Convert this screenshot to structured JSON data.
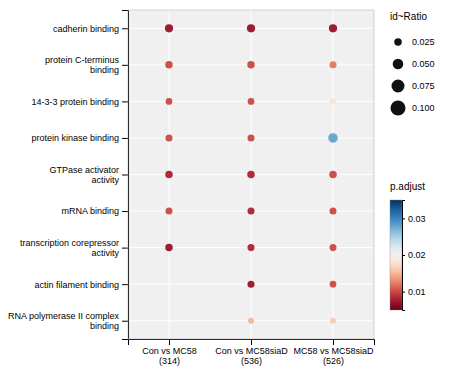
{
  "chart_data": {
    "type": "dot",
    "categories": [
      "cadherin binding",
      "protein C-terminus\nbinding",
      "14-3-3 protein binding",
      "protein kinase binding",
      "GTPase activator\nactivity",
      "mRNA binding",
      "transcription corepressor\nactivity",
      "actin filament binding",
      "RNA polymerase II complex\nbinding"
    ],
    "groups": [
      "Con vs MC58\n(314)",
      "Con vs MC58siaD\n(536)",
      "MC58 vs MC58siaD\n(526)"
    ],
    "points": [
      {
        "cat": 0,
        "grp": 0,
        "size": 0.03,
        "p": 0.007
      },
      {
        "cat": 0,
        "grp": 1,
        "size": 0.03,
        "p": 0.007
      },
      {
        "cat": 0,
        "grp": 2,
        "size": 0.03,
        "p": 0.007
      },
      {
        "cat": 1,
        "grp": 0,
        "size": 0.025,
        "p": 0.01
      },
      {
        "cat": 1,
        "grp": 1,
        "size": 0.025,
        "p": 0.01
      },
      {
        "cat": 1,
        "grp": 2,
        "size": 0.022,
        "p": 0.012
      },
      {
        "cat": 2,
        "grp": 0,
        "size": 0.02,
        "p": 0.01
      },
      {
        "cat": 2,
        "grp": 1,
        "size": 0.02,
        "p": 0.01
      },
      {
        "cat": 2,
        "grp": 2,
        "size": 0.018,
        "p": 0.018
      },
      {
        "cat": 3,
        "grp": 0,
        "size": 0.022,
        "p": 0.01
      },
      {
        "cat": 3,
        "grp": 1,
        "size": 0.022,
        "p": 0.01
      },
      {
        "cat": 3,
        "grp": 2,
        "size": 0.04,
        "p": 0.028
      },
      {
        "cat": 4,
        "grp": 0,
        "size": 0.025,
        "p": 0.008
      },
      {
        "cat": 4,
        "grp": 1,
        "size": 0.025,
        "p": 0.008
      },
      {
        "cat": 4,
        "grp": 2,
        "size": 0.025,
        "p": 0.01
      },
      {
        "cat": 5,
        "grp": 0,
        "size": 0.022,
        "p": 0.01
      },
      {
        "cat": 5,
        "grp": 1,
        "size": 0.022,
        "p": 0.008
      },
      {
        "cat": 5,
        "grp": 2,
        "size": 0.022,
        "p": 0.01
      },
      {
        "cat": 6,
        "grp": 0,
        "size": 0.025,
        "p": 0.007
      },
      {
        "cat": 6,
        "grp": 1,
        "size": 0.022,
        "p": 0.008
      },
      {
        "cat": 6,
        "grp": 2,
        "size": 0.022,
        "p": 0.01
      },
      {
        "cat": 7,
        "grp": 1,
        "size": 0.022,
        "p": 0.007
      },
      {
        "cat": 7,
        "grp": 2,
        "size": 0.02,
        "p": 0.01
      },
      {
        "cat": 8,
        "grp": 1,
        "size": 0.016,
        "p": 0.015
      },
      {
        "cat": 8,
        "grp": 2,
        "size": 0.016,
        "p": 0.016
      }
    ],
    "grid": true,
    "size_legend": {
      "title": "id~Ratio",
      "values": [
        0.025,
        0.05,
        0.075,
        0.1
      ],
      "labels": [
        "0.025",
        "0.050",
        "0.075",
        "0.100"
      ]
    },
    "color_bar": {
      "title": "p.adjust",
      "range": [
        0.005,
        0.035
      ],
      "ticks": [
        0.01,
        0.02,
        0.03
      ]
    }
  }
}
